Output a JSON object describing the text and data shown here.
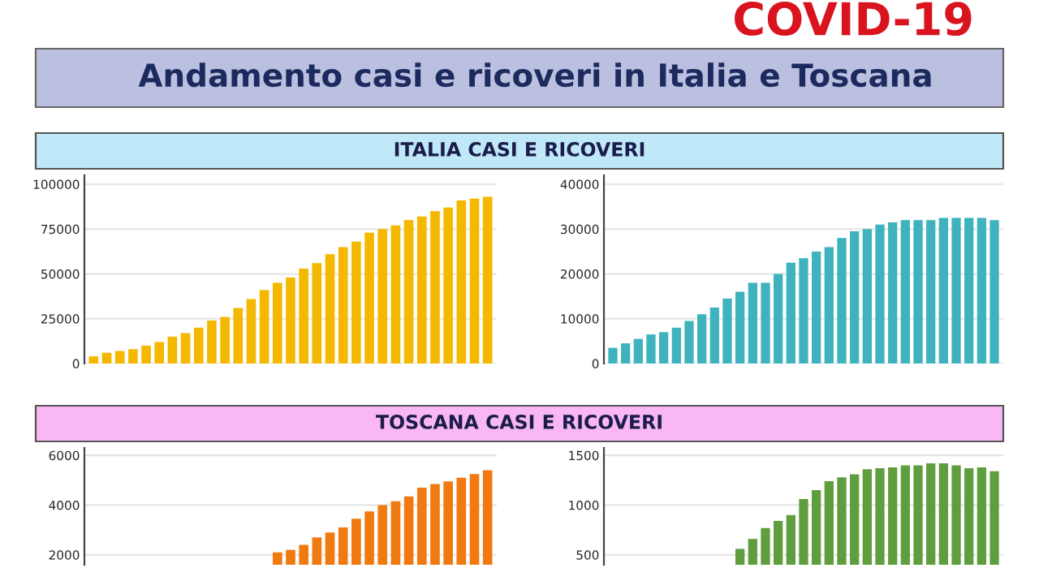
{
  "chart_data": [
    {
      "type": "bar",
      "title": "ITALIA CASI E RICOVERI",
      "subtitle": "Andamento casi e ricoveri in Italia e Toscana",
      "categories": [
        null,
        null,
        null,
        null,
        null,
        null,
        null,
        null,
        null,
        null,
        null,
        null,
        null,
        null,
        null,
        null,
        null,
        null,
        null,
        null,
        null,
        null,
        null,
        null,
        null,
        null,
        null,
        null,
        null,
        null,
        null
      ],
      "values": [
        4000,
        6000,
        7000,
        8000,
        10000,
        12000,
        15000,
        17000,
        20000,
        24000,
        26000,
        31000,
        36000,
        41000,
        45000,
        48000,
        53000,
        56000,
        61000,
        65000,
        68000,
        73000,
        75000,
        77000,
        80000,
        82000,
        85000,
        87000,
        91000,
        92000,
        93000
      ],
      "color": "#f5b800",
      "ylim": [
        0,
        105000
      ],
      "yticks": [
        0,
        25000,
        50000,
        75000,
        100000
      ],
      "grid": "y",
      "tick_labels": "y"
    },
    {
      "type": "bar",
      "title": "COVID-19",
      "categories": [
        null,
        null,
        null,
        null,
        null,
        null,
        null,
        null,
        null,
        null,
        null,
        null,
        null,
        null,
        null,
        null,
        null,
        null,
        null,
        null,
        null,
        null,
        null,
        null,
        null,
        null,
        null,
        null,
        null,
        null,
        null
      ],
      "values": [
        3500,
        4500,
        5500,
        6500,
        7000,
        8000,
        9500,
        11000,
        12500,
        14500,
        16000,
        18000,
        18000,
        20000,
        22500,
        23500,
        25000,
        26000,
        28000,
        29500,
        30000,
        31000,
        31500,
        32000,
        32000,
        32000,
        32500,
        32500,
        32500,
        32500,
        32000
      ],
      "color": "#3fb3bd",
      "ylim": [
        0,
        42000
      ],
      "yticks": [
        0,
        10000,
        20000,
        30000,
        40000
      ],
      "grid": "y",
      "tick_labels": "y"
    },
    {
      "type": "bar",
      "title": "TOSCANA CASI E RICOVERI",
      "categories": [
        null,
        null,
        null,
        null,
        null,
        null,
        null,
        null,
        null,
        null,
        null,
        null,
        null,
        null,
        null,
        null,
        null,
        null,
        null,
        null,
        null,
        null,
        null,
        null,
        null,
        null,
        null,
        null,
        null,
        null,
        null
      ],
      "values": [
        null,
        null,
        null,
        null,
        null,
        null,
        null,
        null,
        null,
        null,
        null,
        null,
        null,
        null,
        2100,
        2200,
        2400,
        2700,
        2900,
        3100,
        3450,
        3750,
        4000,
        4150,
        4350,
        4700,
        4850,
        4950,
        5100,
        5250,
        5400
      ],
      "color": "#f07a10",
      "ylim": [
        1600,
        6300
      ],
      "yticks": [
        2000,
        4000,
        6000
      ],
      "grid": "y",
      "tick_labels": "y"
    },
    {
      "type": "bar",
      "categories": [
        null,
        null,
        null,
        null,
        null,
        null,
        null,
        null,
        null,
        null,
        null,
        null,
        null,
        null,
        null,
        null,
        null,
        null,
        null,
        null,
        null,
        null,
        null,
        null,
        null,
        null,
        null,
        null,
        null,
        null,
        null
      ],
      "values": [
        null,
        null,
        null,
        null,
        null,
        null,
        null,
        null,
        null,
        null,
        560,
        660,
        770,
        840,
        900,
        1060,
        1150,
        1240,
        1280,
        1310,
        1360,
        1370,
        1380,
        1400,
        1400,
        1420,
        1420,
        1400,
        1370,
        1380,
        1340
      ],
      "color": "#5e9e3e",
      "ylim": [
        400,
        1575
      ],
      "yticks": [
        500,
        1000,
        1500
      ],
      "grid": "y",
      "tick_labels": "y"
    }
  ]
}
